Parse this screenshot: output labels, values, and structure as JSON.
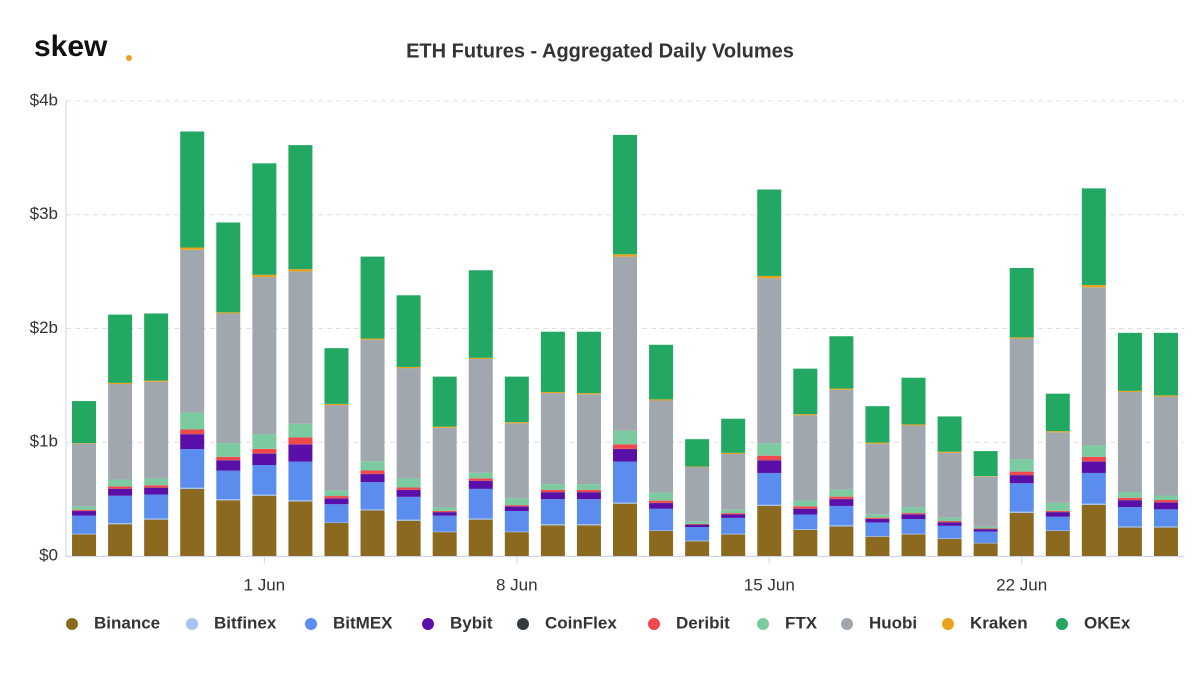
{
  "logo": "skew",
  "chart_data": {
    "type": "bar",
    "stacked": true,
    "title": "ETH Futures - Aggregated Daily Volumes",
    "categories": [
      null,
      null,
      null,
      null,
      null,
      "1 Jun",
      null,
      null,
      null,
      null,
      null,
      null,
      "8 Jun",
      null,
      null,
      null,
      null,
      null,
      null,
      "15 Jun",
      null,
      null,
      null,
      null,
      null,
      null,
      "22 Jun",
      null,
      null,
      null,
      null
    ],
    "ylim": [
      0,
      4
    ],
    "yticks": [
      {
        "value": 0,
        "label": "$0"
      },
      {
        "value": 1,
        "label": "$1b"
      },
      {
        "value": 2,
        "label": "$2b"
      },
      {
        "value": 3,
        "label": "$3b"
      },
      {
        "value": 4,
        "label": "$4b"
      }
    ],
    "grid": true,
    "legend": "bottom",
    "series": [
      {
        "name": "Binance",
        "color": "#8b6a1f",
        "values": [
          0.19,
          0.28,
          0.32,
          0.59,
          0.49,
          0.53,
          0.48,
          0.29,
          0.4,
          0.31,
          0.21,
          0.32,
          0.21,
          0.27,
          0.27,
          0.46,
          0.22,
          0.13,
          0.19,
          0.44,
          0.23,
          0.26,
          0.17,
          0.19,
          0.15,
          0.11,
          0.38,
          0.22,
          0.45,
          0.25,
          0.25
        ]
      },
      {
        "name": "Bitfinex",
        "color": "#a5c3f0",
        "values": [
          0.005,
          0.01,
          0.01,
          0.01,
          0.01,
          0.01,
          0.01,
          0.005,
          0.01,
          0.01,
          0.005,
          0.01,
          0.005,
          0.01,
          0.01,
          0.01,
          0.005,
          0.005,
          0.005,
          0.01,
          0.005,
          0.01,
          0.005,
          0.005,
          0.005,
          0.005,
          0.01,
          0.005,
          0.01,
          0.01,
          0.01
        ]
      },
      {
        "name": "BitMEX",
        "color": "#5b8def",
        "values": [
          0.16,
          0.24,
          0.21,
          0.34,
          0.25,
          0.26,
          0.34,
          0.16,
          0.24,
          0.2,
          0.14,
          0.26,
          0.18,
          0.22,
          0.22,
          0.36,
          0.19,
          0.12,
          0.14,
          0.28,
          0.13,
          0.17,
          0.12,
          0.13,
          0.11,
          0.1,
          0.25,
          0.12,
          0.27,
          0.17,
          0.15
        ]
      },
      {
        "name": "Bybit",
        "color": "#5a0fa8",
        "values": [
          0.04,
          0.06,
          0.06,
          0.13,
          0.09,
          0.1,
          0.15,
          0.05,
          0.07,
          0.06,
          0.03,
          0.07,
          0.04,
          0.06,
          0.06,
          0.11,
          0.05,
          0.02,
          0.03,
          0.11,
          0.05,
          0.06,
          0.03,
          0.04,
          0.03,
          0.02,
          0.07,
          0.04,
          0.1,
          0.06,
          0.06
        ]
      },
      {
        "name": "CoinFlex",
        "color": "#333a40",
        "values": [
          0.002,
          0.002,
          0.002,
          0.002,
          0.002,
          0.002,
          0.002,
          0.002,
          0.002,
          0.002,
          0.002,
          0.002,
          0.002,
          0.002,
          0.002,
          0.002,
          0.002,
          0.002,
          0.002,
          0.002,
          0.002,
          0.002,
          0.002,
          0.002,
          0.002,
          0.002,
          0.002,
          0.002,
          0.002,
          0.002,
          0.002
        ]
      },
      {
        "name": "Deribit",
        "color": "#f0484c",
        "values": [
          0.01,
          0.02,
          0.02,
          0.04,
          0.03,
          0.04,
          0.06,
          0.02,
          0.03,
          0.02,
          0.01,
          0.02,
          0.01,
          0.02,
          0.02,
          0.04,
          0.02,
          0.005,
          0.01,
          0.04,
          0.02,
          0.02,
          0.01,
          0.01,
          0.01,
          0.005,
          0.03,
          0.01,
          0.04,
          0.02,
          0.02
        ]
      },
      {
        "name": "FTX",
        "color": "#7ccba0",
        "values": [
          0.03,
          0.06,
          0.06,
          0.15,
          0.12,
          0.13,
          0.12,
          0.05,
          0.08,
          0.08,
          0.03,
          0.05,
          0.06,
          0.05,
          0.05,
          0.12,
          0.07,
          0.02,
          0.03,
          0.11,
          0.05,
          0.06,
          0.03,
          0.05,
          0.03,
          0.015,
          0.11,
          0.07,
          0.1,
          0.05,
          0.04
        ]
      },
      {
        "name": "Huobi",
        "color": "#a0a7ae",
        "values": [
          0.55,
          0.84,
          0.85,
          1.43,
          1.14,
          1.38,
          1.34,
          0.75,
          1.07,
          0.97,
          0.7,
          1.0,
          0.66,
          0.8,
          0.79,
          1.53,
          0.81,
          0.48,
          0.49,
          1.45,
          0.75,
          0.88,
          0.62,
          0.72,
          0.57,
          0.44,
          1.06,
          0.62,
          1.39,
          0.88,
          0.87
        ]
      },
      {
        "name": "Kraken",
        "color": "#e8a21e",
        "values": [
          0.005,
          0.01,
          0.01,
          0.02,
          0.01,
          0.02,
          0.02,
          0.01,
          0.01,
          0.01,
          0.01,
          0.01,
          0.01,
          0.01,
          0.01,
          0.02,
          0.01,
          0.005,
          0.01,
          0.02,
          0.01,
          0.01,
          0.01,
          0.01,
          0.01,
          0.005,
          0.01,
          0.01,
          0.02,
          0.01,
          0.01
        ]
      },
      {
        "name": "OKEx",
        "color": "#22a862",
        "values": [
          0.37,
          0.6,
          0.59,
          1.02,
          0.79,
          0.98,
          1.09,
          0.49,
          0.72,
          0.63,
          0.44,
          0.77,
          0.4,
          0.53,
          0.54,
          1.05,
          0.48,
          0.24,
          0.3,
          0.76,
          0.4,
          0.46,
          0.32,
          0.41,
          0.31,
          0.22,
          0.61,
          0.33,
          0.85,
          0.51,
          0.55
        ]
      }
    ]
  }
}
